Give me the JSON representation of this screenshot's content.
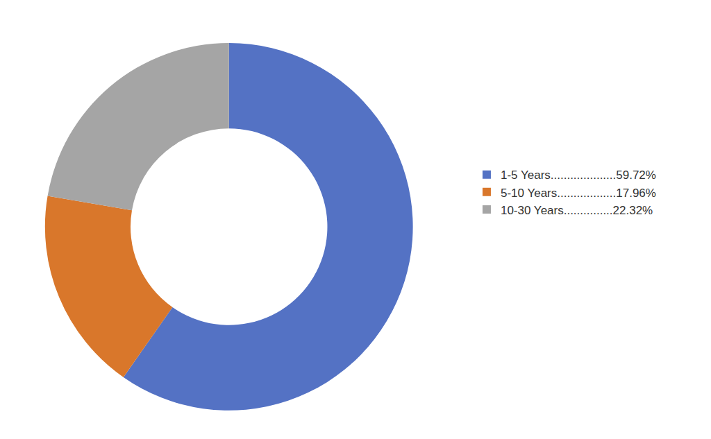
{
  "chart_data": {
    "type": "pie",
    "categories": [
      "1-5 Years....................59.72%",
      "5-10 Years..................17.96%",
      "10-30 Years...............22.32%"
    ],
    "values": [
      59.72,
      17.96,
      22.32
    ],
    "colors": [
      "#5472c4",
      "#d9772b",
      "#a5a5a5"
    ],
    "legend": "right",
    "data_labels": false
  }
}
